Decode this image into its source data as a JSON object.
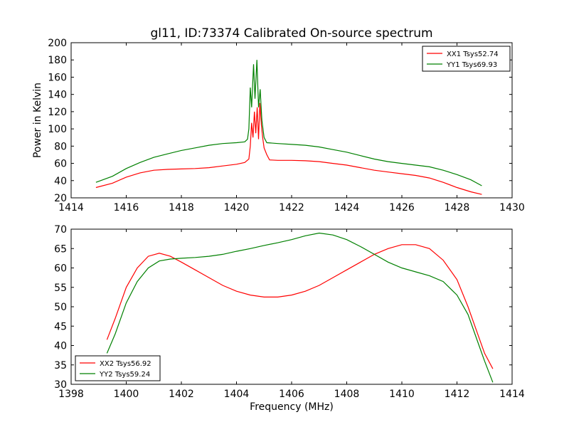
{
  "chart_data": [
    {
      "type": "line",
      "title": "gl11, ID:73374 Calibrated On-source spectrum",
      "xlabel": "",
      "ylabel": "Power in Kelvin",
      "xlim": [
        1414,
        1430
      ],
      "ylim": [
        20,
        200
      ],
      "xticks": [
        1414,
        1416,
        1418,
        1420,
        1422,
        1424,
        1426,
        1428,
        1430
      ],
      "yticks": [
        20,
        40,
        60,
        80,
        100,
        120,
        140,
        160,
        180,
        200
      ],
      "legend": "top-right",
      "grid": false,
      "series": [
        {
          "name": "XX1 Tsys52.74",
          "color": "#ff0000",
          "points": [
            [
              1414.9,
              32
            ],
            [
              1415.5,
              37
            ],
            [
              1416.0,
              44
            ],
            [
              1416.5,
              49
            ],
            [
              1417.0,
              52
            ],
            [
              1417.5,
              53
            ],
            [
              1418.0,
              53.5
            ],
            [
              1418.5,
              54
            ],
            [
              1419.0,
              55
            ],
            [
              1419.5,
              57
            ],
            [
              1420.0,
              59
            ],
            [
              1420.3,
              61
            ],
            [
              1420.45,
              65
            ],
            [
              1420.5,
              80
            ],
            [
              1420.55,
              107
            ],
            [
              1420.6,
              90
            ],
            [
              1420.65,
              120
            ],
            [
              1420.7,
              95
            ],
            [
              1420.75,
              125
            ],
            [
              1420.8,
              88
            ],
            [
              1420.85,
              130
            ],
            [
              1420.9,
              105
            ],
            [
              1420.95,
              90
            ],
            [
              1421.0,
              78
            ],
            [
              1421.1,
              70
            ],
            [
              1421.2,
              64
            ],
            [
              1421.5,
              63.5
            ],
            [
              1422.0,
              63.5
            ],
            [
              1422.5,
              63
            ],
            [
              1423.0,
              62
            ],
            [
              1423.5,
              60
            ],
            [
              1424.0,
              58
            ],
            [
              1424.5,
              55
            ],
            [
              1425.0,
              52
            ],
            [
              1425.5,
              50
            ],
            [
              1426.0,
              48
            ],
            [
              1426.5,
              46
            ],
            [
              1427.0,
              43
            ],
            [
              1427.5,
              38
            ],
            [
              1428.0,
              32
            ],
            [
              1428.5,
              27
            ],
            [
              1428.9,
              24
            ]
          ]
        },
        {
          "name": "YY1 Tsys69.93",
          "color": "#008000",
          "points": [
            [
              1414.9,
              38
            ],
            [
              1415.5,
              45
            ],
            [
              1416.0,
              54
            ],
            [
              1416.5,
              61
            ],
            [
              1417.0,
              67
            ],
            [
              1417.5,
              71
            ],
            [
              1418.0,
              75
            ],
            [
              1418.5,
              78
            ],
            [
              1419.0,
              81
            ],
            [
              1419.5,
              83
            ],
            [
              1420.0,
              84
            ],
            [
              1420.3,
              85
            ],
            [
              1420.4,
              88
            ],
            [
              1420.45,
              100
            ],
            [
              1420.5,
              148
            ],
            [
              1420.55,
              125
            ],
            [
              1420.62,
              175
            ],
            [
              1420.67,
              135
            ],
            [
              1420.74,
              180
            ],
            [
              1420.8,
              125
            ],
            [
              1420.86,
              146
            ],
            [
              1420.92,
              110
            ],
            [
              1421.0,
              90
            ],
            [
              1421.1,
              84
            ],
            [
              1421.5,
              83
            ],
            [
              1422.0,
              82
            ],
            [
              1422.5,
              81
            ],
            [
              1423.0,
              79
            ],
            [
              1423.5,
              76
            ],
            [
              1424.0,
              73
            ],
            [
              1424.5,
              69
            ],
            [
              1425.0,
              65
            ],
            [
              1425.5,
              62
            ],
            [
              1426.0,
              60
            ],
            [
              1426.5,
              58
            ],
            [
              1427.0,
              56
            ],
            [
              1427.5,
              52
            ],
            [
              1428.0,
              47
            ],
            [
              1428.5,
              41
            ],
            [
              1428.9,
              34
            ]
          ]
        }
      ]
    },
    {
      "type": "line",
      "title": "",
      "xlabel": "Frequency (MHz)",
      "ylabel": "",
      "xlim": [
        1398,
        1414
      ],
      "ylim": [
        30,
        70
      ],
      "xticks": [
        1398,
        1400,
        1402,
        1404,
        1406,
        1408,
        1410,
        1412,
        1414
      ],
      "yticks": [
        30,
        35,
        40,
        45,
        50,
        55,
        60,
        65,
        70
      ],
      "legend": "bottom-left",
      "grid": false,
      "series": [
        {
          "name": "XX2 Tsys56.92",
          "color": "#ff0000",
          "points": [
            [
              1399.3,
              41.5
            ],
            [
              1399.6,
              47
            ],
            [
              1400.0,
              55
            ],
            [
              1400.4,
              60
            ],
            [
              1400.8,
              63
            ],
            [
              1401.2,
              63.8
            ],
            [
              1401.6,
              63
            ],
            [
              1402.0,
              61.5
            ],
            [
              1402.5,
              59.5
            ],
            [
              1403.0,
              57.5
            ],
            [
              1403.5,
              55.5
            ],
            [
              1404.0,
              54
            ],
            [
              1404.5,
              53
            ],
            [
              1405.0,
              52.5
            ],
            [
              1405.5,
              52.5
            ],
            [
              1406.0,
              53
            ],
            [
              1406.5,
              54
            ],
            [
              1407.0,
              55.5
            ],
            [
              1407.5,
              57.5
            ],
            [
              1408.0,
              59.5
            ],
            [
              1408.5,
              61.5
            ],
            [
              1409.0,
              63.5
            ],
            [
              1409.5,
              65
            ],
            [
              1410.0,
              66
            ],
            [
              1410.5,
              66
            ],
            [
              1411.0,
              65
            ],
            [
              1411.5,
              62
            ],
            [
              1412.0,
              57
            ],
            [
              1412.4,
              50
            ],
            [
              1412.8,
              42
            ],
            [
              1413.0,
              38
            ],
            [
              1413.3,
              34
            ]
          ]
        },
        {
          "name": "YY2 Tsys59.24",
          "color": "#008000",
          "points": [
            [
              1399.3,
              38
            ],
            [
              1399.6,
              43
            ],
            [
              1400.0,
              51
            ],
            [
              1400.4,
              56.5
            ],
            [
              1400.8,
              60
            ],
            [
              1401.2,
              61.8
            ],
            [
              1401.6,
              62.3
            ],
            [
              1402.0,
              62.5
            ],
            [
              1402.5,
              62.7
            ],
            [
              1403.0,
              63
            ],
            [
              1403.5,
              63.5
            ],
            [
              1404.0,
              64.3
            ],
            [
              1404.5,
              65
            ],
            [
              1405.0,
              65.8
            ],
            [
              1405.5,
              66.5
            ],
            [
              1406.0,
              67.3
            ],
            [
              1406.5,
              68.3
            ],
            [
              1407.0,
              69
            ],
            [
              1407.5,
              68.5
            ],
            [
              1408.0,
              67.3
            ],
            [
              1408.5,
              65.5
            ],
            [
              1409.0,
              63.5
            ],
            [
              1409.5,
              61.5
            ],
            [
              1410.0,
              60
            ],
            [
              1410.5,
              59
            ],
            [
              1411.0,
              58
            ],
            [
              1411.5,
              56.5
            ],
            [
              1412.0,
              53
            ],
            [
              1412.4,
              48
            ],
            [
              1412.8,
              40
            ],
            [
              1413.0,
              36
            ],
            [
              1413.3,
              30.5
            ]
          ]
        }
      ]
    }
  ]
}
